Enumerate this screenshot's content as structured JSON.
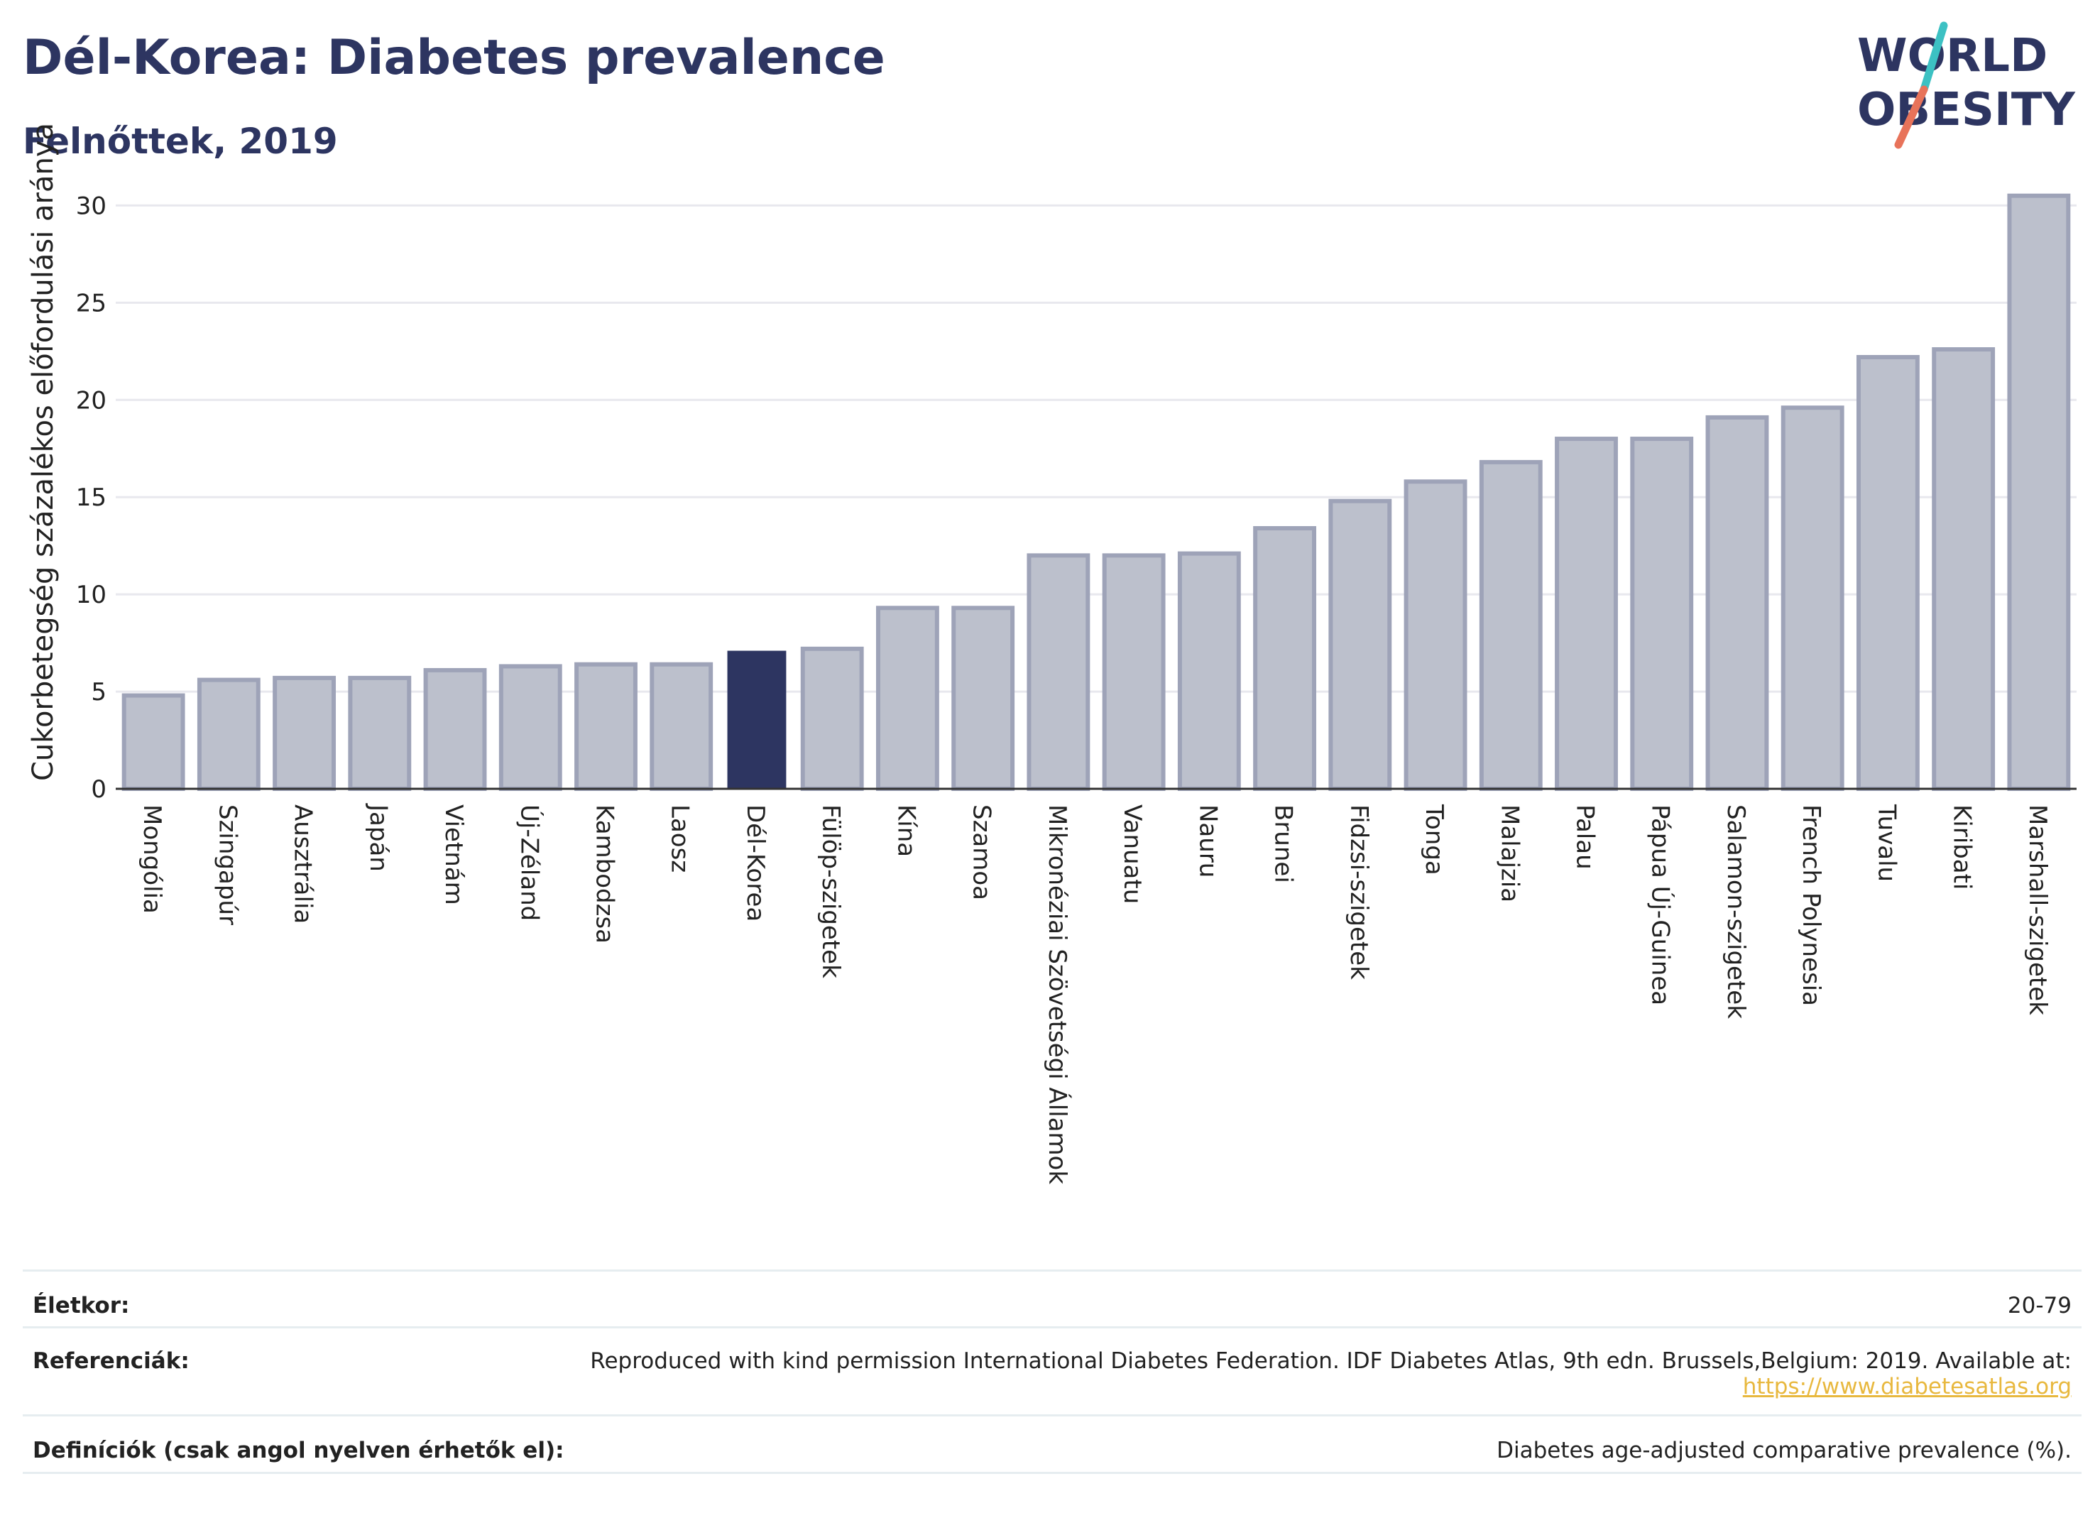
{
  "header": {
    "title": "Dél-Korea: Diabetes prevalence",
    "subtitle": "Felnőttek, 2019"
  },
  "logo": {
    "line1": "WORLD",
    "line2": "OBESITY",
    "colors": {
      "text": "#2d3561",
      "slash_teal": "#3cc1c3",
      "slash_red": "#e8735a"
    }
  },
  "chart_data": {
    "type": "bar",
    "ylabel": "Cukorbetegség százalékos előfordulási aránya",
    "xlabel": "",
    "ylim": [
      0,
      31
    ],
    "yticks": [
      0,
      5,
      10,
      15,
      20,
      25,
      30
    ],
    "grid": true,
    "categories": [
      "Mongólia",
      "Szingapúr",
      "Ausztrália",
      "Japán",
      "Vietnám",
      "Új-Zéland",
      "Kambodzsa",
      "Laosz",
      "Dél-Korea",
      "Fülöp-szigetek",
      "Kína",
      "Szamoa",
      "Mikronéziai Szövetségi Államok",
      "Vanuatu",
      "Nauru",
      "Brunei",
      "Fidzsi-szigetek",
      "Tonga",
      "Malajzia",
      "Palau",
      "Pápua Új-Guinea",
      "Salamon-szigetek",
      "French Polynesia",
      "Tuvalu",
      "Kiribati",
      "Marshall-szigetek"
    ],
    "values": [
      4.8,
      5.6,
      5.7,
      5.7,
      6.1,
      6.3,
      6.4,
      6.4,
      7.1,
      7.2,
      9.3,
      9.3,
      12.0,
      12.0,
      12.1,
      13.4,
      14.8,
      15.8,
      16.8,
      18.0,
      18.0,
      19.1,
      19.6,
      22.2,
      22.6,
      30.5
    ],
    "highlight": "Dél-Korea",
    "colors": {
      "bar": "#bcc0cc",
      "bar_border": "#9ea3b8",
      "highlight": "#2d3561",
      "grid": "#e8e8ee",
      "axis": "#333333"
    }
  },
  "info": {
    "age_label": "Életkor:",
    "age_value": "20-79",
    "ref_label": "Referenciák:",
    "ref_value": "Reproduced with kind permission International Diabetes Federation. IDF Diabetes Atlas, 9th edn. Brussels,Belgium: 2019. Available at:",
    "ref_link": "https://www.diabetesatlas.org",
    "def_label": "Definíciók (csak angol nyelven érhetők el):",
    "def_value": "Diabetes age-adjusted comparative prevalence (%)."
  }
}
